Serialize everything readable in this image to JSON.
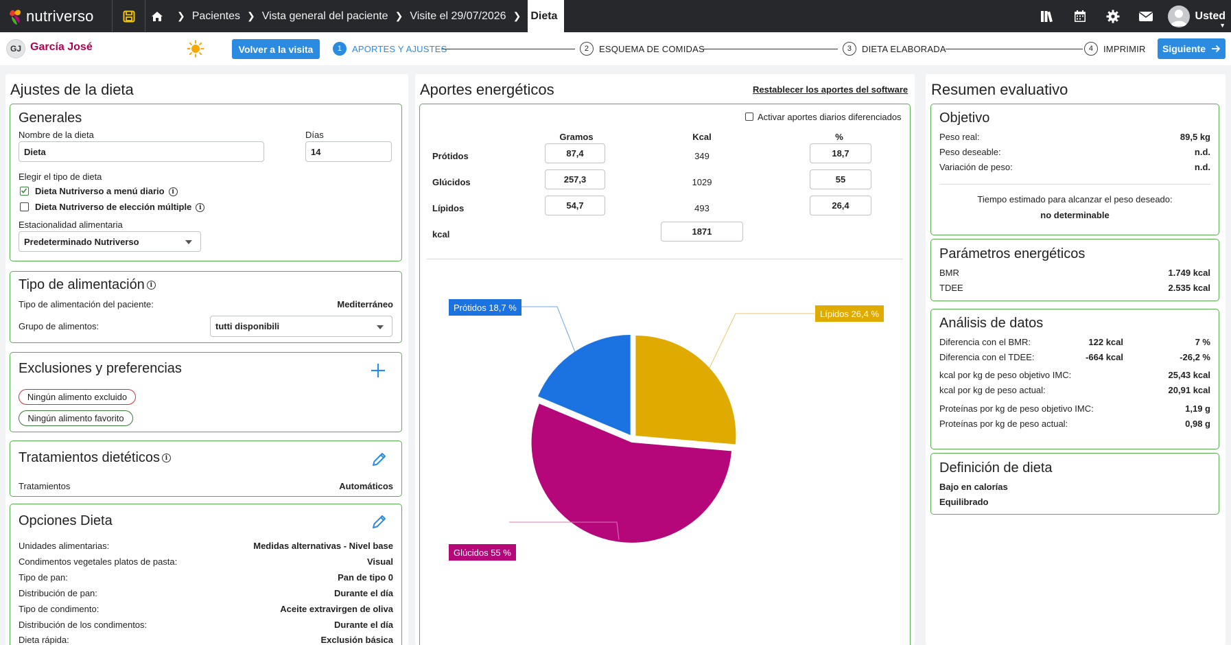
{
  "app": {
    "name": "nutriverso"
  },
  "breadcrumb": [
    "Pacientes",
    "Vista general del paciente",
    "Visite el 29/07/2026"
  ],
  "breadcrumb_active": "Dieta",
  "user": {
    "name": "Usted"
  },
  "patient": {
    "initials": "GJ",
    "name": "García José"
  },
  "toolbar": {
    "back_label": "Volver a la visita",
    "next_label": "Siguiente"
  },
  "steps": [
    {
      "num": "1",
      "label": "APORTES Y AJUSTES"
    },
    {
      "num": "2",
      "label": "ESQUEMA DE COMIDAS"
    },
    {
      "num": "3",
      "label": "DIETA ELABORADA"
    },
    {
      "num": "4",
      "label": "IMPRIMIR"
    }
  ],
  "left": {
    "title": "Ajustes de la dieta",
    "generales": {
      "title": "Generales",
      "name_label": "Nombre de la dieta",
      "name_value": "Dieta",
      "days_label": "Días",
      "days_value": "14",
      "type_label": "Elegir el tipo de dieta",
      "option1": "Dieta Nutriverso a menú diario",
      "option1_checked": true,
      "option2": "Dieta Nutriverso de elección múltiple",
      "option2_checked": false,
      "season_label": "Estacionalidad alimentaria",
      "season_value": "Predeterminado Nutriverso"
    },
    "tipo": {
      "title": "Tipo de alimentación",
      "patient_type_label": "Tipo de alimentación del paciente:",
      "patient_type_value": "Mediterráneo",
      "group_label": "Grupo de alimentos:",
      "group_value": "tutti disponibili"
    },
    "exclusiones": {
      "title": "Exclusiones y preferencias",
      "excluded": "Ningún alimento excluido",
      "favorite": "Ningún alimento favorito"
    },
    "tratamientos": {
      "title": "Tratamientos dietéticos",
      "label": "Tratamientos",
      "value": "Automáticos"
    },
    "opciones": {
      "title": "Opciones Dieta",
      "rows": [
        {
          "label": "Unidades alimentarias:",
          "value": "Medidas alternativas - Nivel base"
        },
        {
          "label": "Condimentos vegetales platos de pasta:",
          "value": "Visual"
        },
        {
          "label": "Tipo de pan:",
          "value": "Pan de tipo 0"
        },
        {
          "label": "Distribución de pan:",
          "value": "Durante el día"
        },
        {
          "label": "Tipo de condimento:",
          "value": "Aceite extravirgen de oliva"
        },
        {
          "label": "Distribución de los condimentos:",
          "value": "Durante el día"
        },
        {
          "label": "Dieta rápida:",
          "value": "Exclusión básica"
        }
      ]
    }
  },
  "middle": {
    "title": "Aportes energéticos",
    "reset_link": "Restablecer los aportes del software",
    "daily_toggle": "Activar aportes diarios diferenciados",
    "headers": {
      "grams": "Gramos",
      "kcal": "Kcal",
      "percent": "%"
    },
    "rows": [
      {
        "label": "Prótidos",
        "grams": "87,4",
        "kcal": "349",
        "percent": "18,7"
      },
      {
        "label": "Glúcidos",
        "grams": "257,3",
        "kcal": "1029",
        "percent": "55"
      },
      {
        "label": "Lípidos",
        "grams": "54,7",
        "kcal": "493",
        "percent": "26,4"
      }
    ],
    "total_label": "kcal",
    "total_value": "1871",
    "pie_labels": {
      "protidos": "Prótidos 18,7 %",
      "lipidos": "Lípidos 26,4 %",
      "glucidos": "Glúcidos 55 %"
    },
    "colors": {
      "protidos": "#1a73e0",
      "lipidos": "#e0ab00",
      "glucidos": "#b5077a"
    }
  },
  "chart_data": {
    "type": "pie",
    "categories": [
      "Prótidos",
      "Lípidos",
      "Glúcidos"
    ],
    "values": [
      18.7,
      26.4,
      55
    ],
    "colors": [
      "#1a73e0",
      "#e0ab00",
      "#b5077a"
    ],
    "title": ""
  },
  "right": {
    "title": "Resumen evaluativo",
    "objetivo": {
      "title": "Objetivo",
      "rows": [
        {
          "label": "Peso real:",
          "value": "89,5 kg"
        },
        {
          "label": "Peso deseable:",
          "value": "n.d."
        },
        {
          "label": "Variación de peso:",
          "value": "n.d."
        }
      ],
      "estimate_label": "Tiempo estimado para alcanzar el peso deseado:",
      "estimate_value": "no determinable"
    },
    "parametros": {
      "title": "Parámetros energéticos",
      "rows": [
        {
          "label": "BMR",
          "value": "1.749 kcal"
        },
        {
          "label": "TDEE",
          "value": "2.535 kcal"
        }
      ]
    },
    "analisis": {
      "title": "Análisis de datos",
      "diff_rows": [
        {
          "label": "Diferencia con el BMR:",
          "kcal": "122 kcal",
          "pct": "7 %"
        },
        {
          "label": "Diferencia con el TDEE:",
          "kcal": "-664 kcal",
          "pct": "-26,2 %"
        }
      ],
      "rows": [
        {
          "label": "kcal por kg de peso objetivo IMC:",
          "value": "25,43 kcal"
        },
        {
          "label": "kcal por kg de peso actual:",
          "value": "20,91 kcal"
        },
        {
          "label": "Proteínas por kg de peso objetivo IMC:",
          "value": "1,19 g"
        },
        {
          "label": "Proteínas por kg de peso actual:",
          "value": "0,98 g"
        }
      ]
    },
    "definicion": {
      "title": "Definición de dieta",
      "items": [
        "Bajo en calorías",
        "Equilibrado"
      ]
    }
  }
}
